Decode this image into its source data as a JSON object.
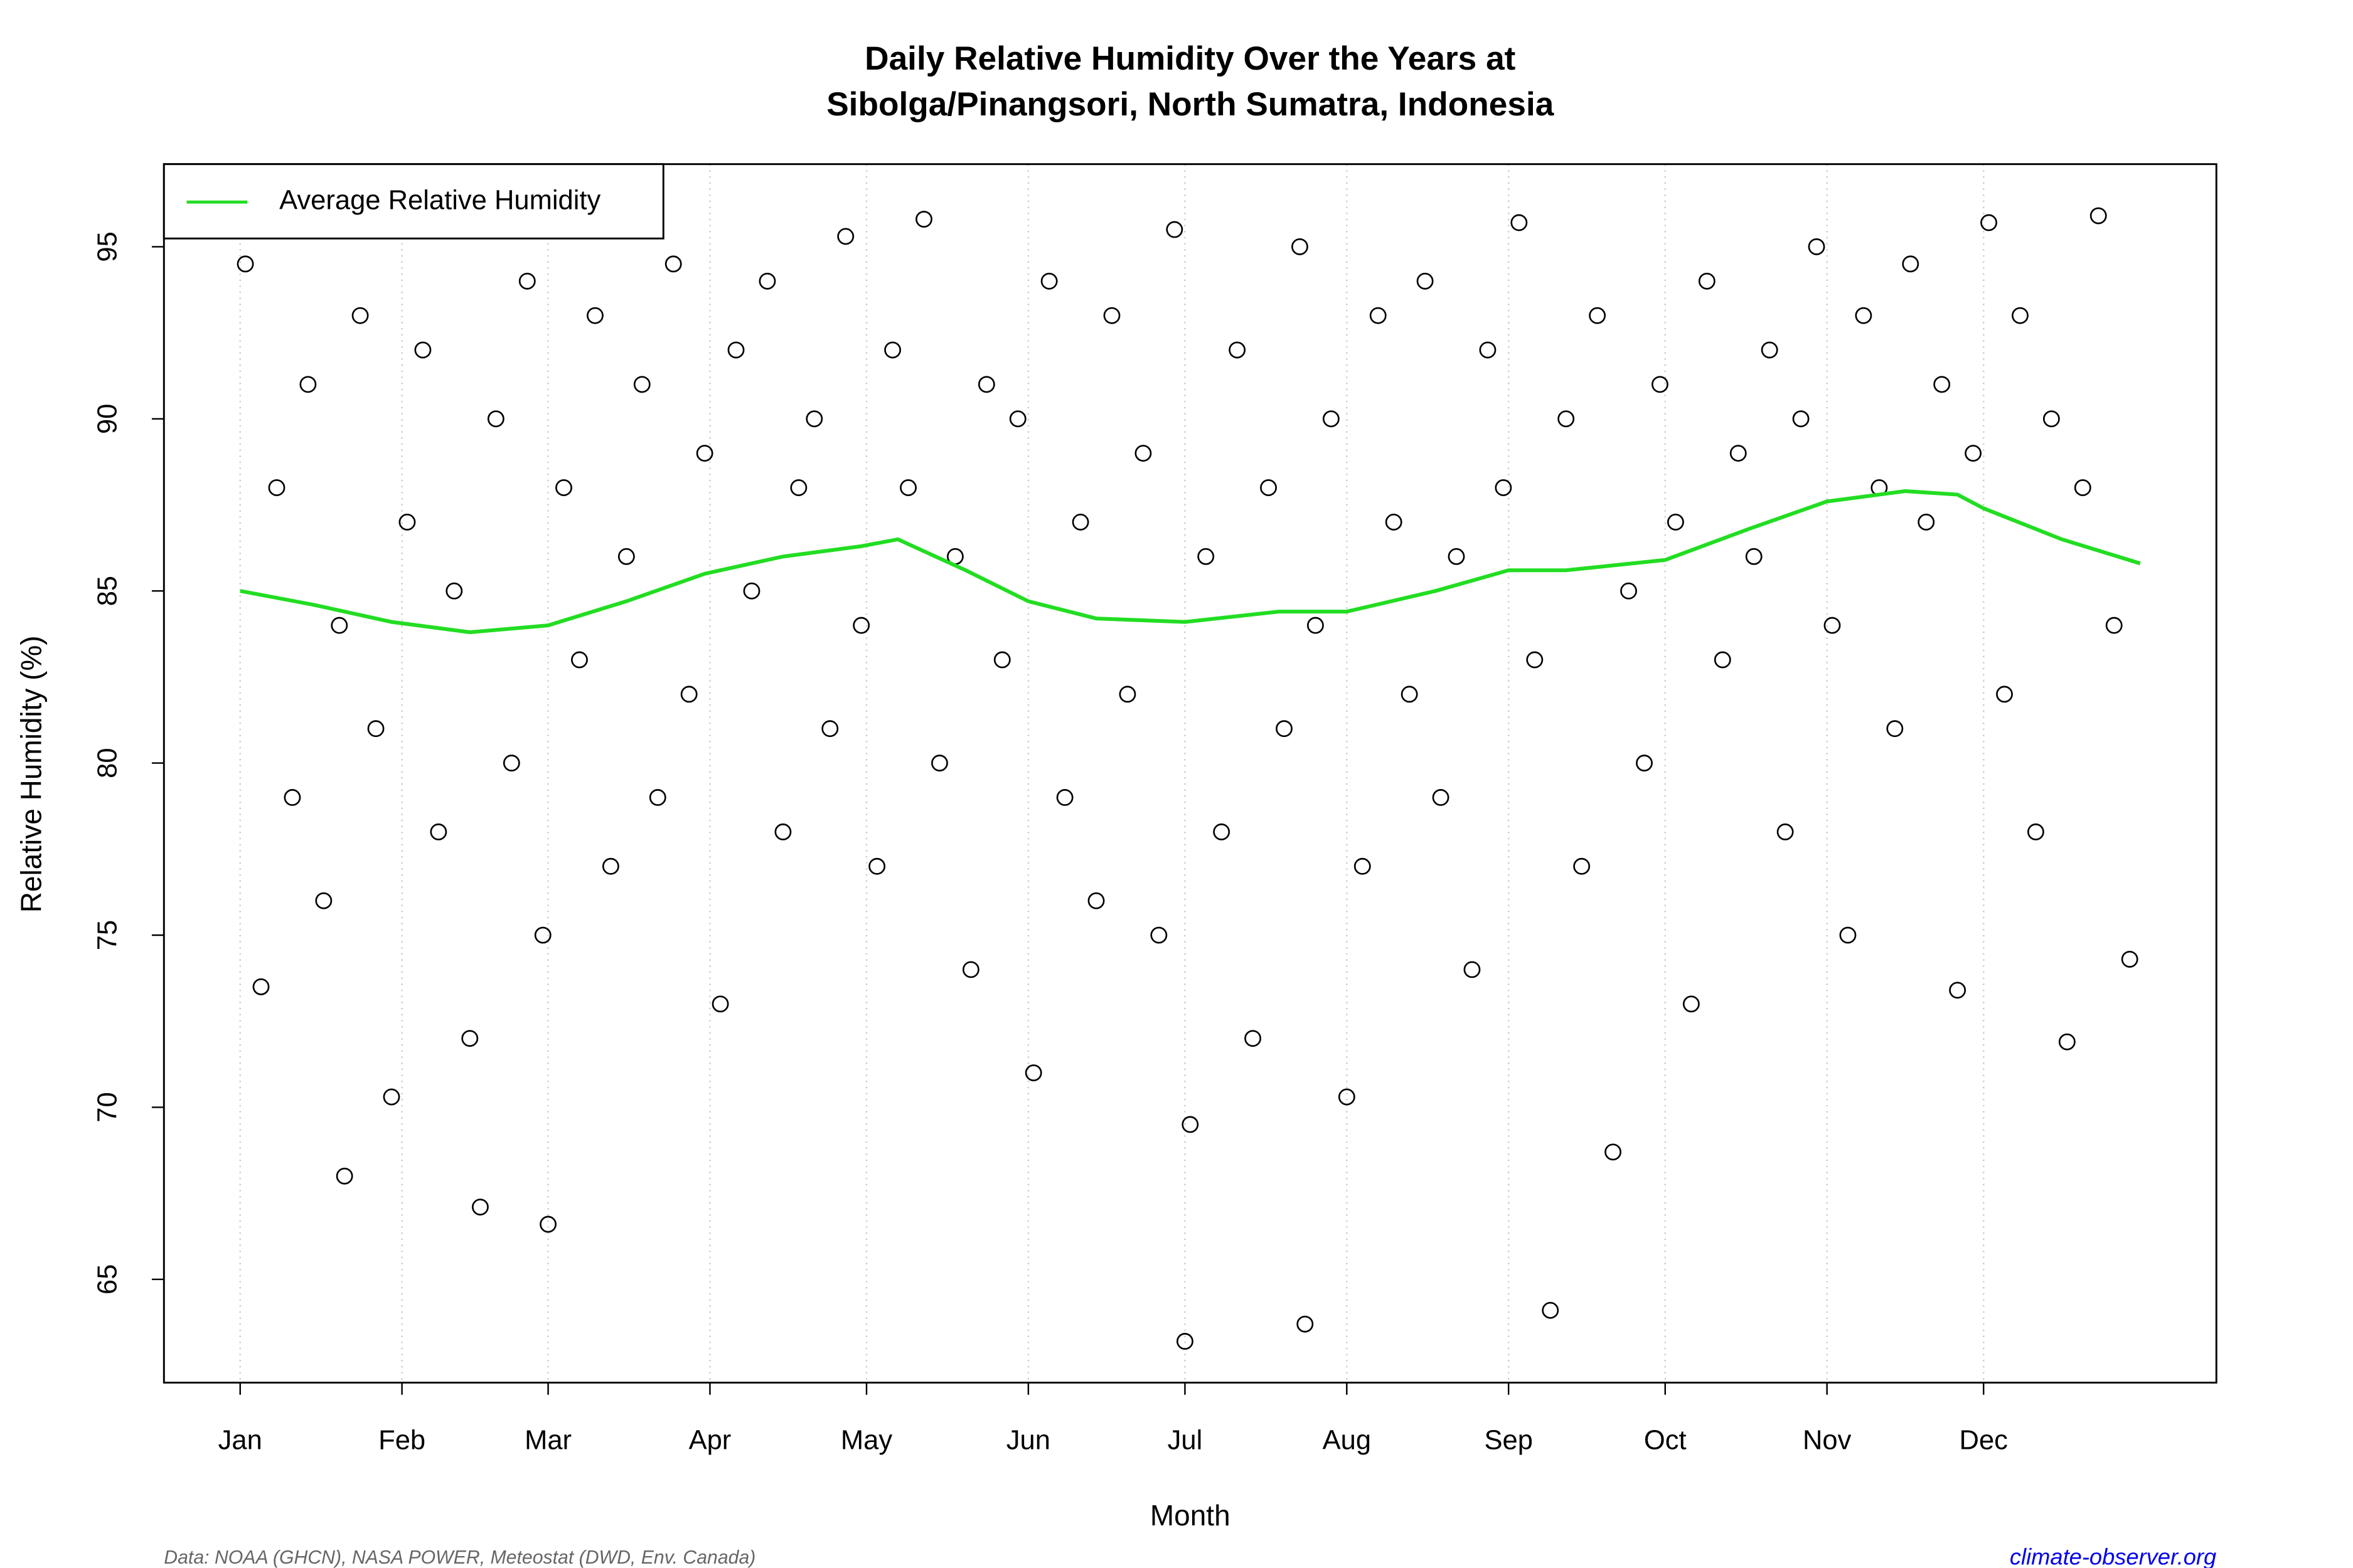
{
  "chart_data": {
    "type": "scatter",
    "title": [
      "Daily Relative Humidity Over the Years at",
      "Sibolga/Pinangsori, North Sumatra, Indonesia"
    ],
    "x_label": "Month",
    "y_label": "Relative Humidity  (%)",
    "xlim": [
      -13.6,
      379.6
    ],
    "ylim": [
      62.0,
      97.4
    ],
    "xticks": [
      {
        "value": 1,
        "label": "Jan"
      },
      {
        "value": 32,
        "label": "Feb"
      },
      {
        "value": 60,
        "label": "Mar"
      },
      {
        "value": 91,
        "label": "Apr"
      },
      {
        "value": 121,
        "label": "May"
      },
      {
        "value": 152,
        "label": "Jun"
      },
      {
        "value": 182,
        "label": "Jul"
      },
      {
        "value": 213,
        "label": "Aug"
      },
      {
        "value": 244,
        "label": "Sep"
      },
      {
        "value": 274,
        "label": "Oct"
      },
      {
        "value": 305,
        "label": "Nov"
      },
      {
        "value": 335,
        "label": "Dec"
      }
    ],
    "yticks": [
      65,
      70,
      75,
      80,
      85,
      90,
      95
    ],
    "grid": "x",
    "legend": "top-left",
    "points": {
      "color": "#000000",
      "x": [
        2,
        5,
        8,
        11,
        14,
        17,
        20,
        21,
        24,
        27,
        30,
        33,
        36,
        39,
        42,
        45,
        47,
        50,
        53,
        56,
        59,
        60,
        63,
        66,
        69,
        72,
        75,
        78,
        81,
        84,
        87,
        90,
        93,
        96,
        99,
        102,
        105,
        108,
        111,
        114,
        117,
        120,
        123,
        126,
        129,
        132,
        135,
        138,
        141,
        144,
        147,
        150,
        153,
        156,
        159,
        162,
        165,
        168,
        171,
        174,
        177,
        180,
        182,
        183,
        186,
        189,
        192,
        195,
        198,
        201,
        204,
        205,
        207,
        210,
        213,
        216,
        219,
        222,
        225,
        228,
        231,
        234,
        237,
        240,
        243,
        246,
        249,
        252,
        255,
        258,
        261,
        264,
        267,
        270,
        273,
        276,
        279,
        282,
        285,
        288,
        291,
        294,
        297,
        300,
        303,
        306,
        309,
        312,
        315,
        318,
        321,
        324,
        327,
        330,
        333,
        336,
        339,
        342,
        345,
        348,
        351,
        354,
        357,
        360,
        363
      ],
      "values": [
        94.5,
        73.5,
        88,
        79,
        91,
        76,
        84,
        68.0,
        93,
        81,
        70.3,
        87,
        92,
        78,
        85,
        72,
        67.1,
        90,
        80,
        94,
        75,
        66.6,
        88,
        83,
        93,
        77,
        86,
        91,
        79,
        94.5,
        82,
        89,
        73,
        92,
        85,
        94,
        78,
        88,
        90,
        81,
        95.3,
        84,
        77,
        92,
        88,
        95.8,
        80,
        86,
        74,
        91,
        83,
        90,
        71,
        94,
        79,
        87,
        76,
        93,
        82,
        89,
        75,
        95.5,
        63.2,
        69.5,
        86,
        78,
        92,
        72,
        88,
        81,
        95,
        63.7,
        84,
        90,
        70.3,
        77,
        93,
        87,
        82,
        94,
        79,
        86,
        74,
        92,
        88,
        95.7,
        83,
        64.1,
        90,
        77,
        93,
        68.7,
        85,
        80,
        91,
        87,
        73,
        94,
        83,
        89,
        86,
        92,
        78,
        90,
        95,
        84,
        75,
        93,
        88,
        81,
        94.5,
        87,
        91,
        73.4,
        89,
        95.7,
        82,
        93,
        78,
        90,
        71.9,
        88,
        95.9,
        84,
        74.3
      ]
    },
    "series": [
      {
        "name": "Average Relative Humidity",
        "color": "#22dd22",
        "x": [
          1,
          15,
          30,
          45,
          60,
          75,
          90,
          105,
          120,
          127,
          140,
          152,
          165,
          182,
          200,
          213,
          230,
          244,
          255,
          274,
          290,
          305,
          320,
          330,
          335,
          350,
          365
        ],
        "values": [
          85.0,
          84.6,
          84.1,
          83.8,
          84.0,
          84.7,
          85.5,
          86.0,
          86.3,
          86.5,
          85.6,
          84.7,
          84.2,
          84.1,
          84.4,
          84.4,
          85.0,
          85.6,
          85.6,
          85.9,
          86.8,
          87.6,
          87.9,
          87.8,
          87.4,
          86.5,
          85.8
        ]
      }
    ]
  },
  "footer": {
    "source": "Data: NOAA (GHCN), NASA POWER, Meteostat (DWD, Env. Canada)",
    "site": "climate-observer.org"
  }
}
